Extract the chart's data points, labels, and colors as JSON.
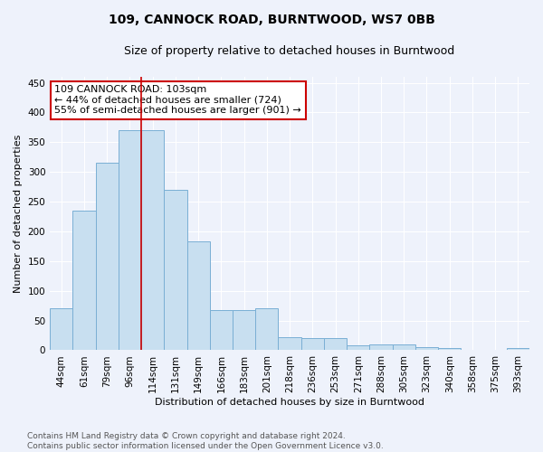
{
  "title": "109, CANNOCK ROAD, BURNTWOOD, WS7 0BB",
  "subtitle": "Size of property relative to detached houses in Burntwood",
  "xlabel": "Distribution of detached houses by size in Burntwood",
  "ylabel": "Number of detached properties",
  "categories": [
    "44sqm",
    "61sqm",
    "79sqm",
    "96sqm",
    "114sqm",
    "131sqm",
    "149sqm",
    "166sqm",
    "183sqm",
    "201sqm",
    "218sqm",
    "236sqm",
    "253sqm",
    "271sqm",
    "288sqm",
    "305sqm",
    "323sqm",
    "340sqm",
    "358sqm",
    "375sqm",
    "393sqm"
  ],
  "values": [
    70,
    235,
    315,
    370,
    370,
    270,
    183,
    68,
    68,
    70,
    22,
    20,
    20,
    8,
    10,
    10,
    5,
    4,
    0,
    0,
    4
  ],
  "bar_color": "#c8dff0",
  "bar_edge_color": "#7aafd4",
  "vline_x": 3.5,
  "annotation_text": "109 CANNOCK ROAD: 103sqm\n← 44% of detached houses are smaller (724)\n55% of semi-detached houses are larger (901) →",
  "annotation_box_color": "#ffffff",
  "annotation_box_edge_color": "#cc0000",
  "ylim": [
    0,
    460
  ],
  "yticks": [
    0,
    50,
    100,
    150,
    200,
    250,
    300,
    350,
    400,
    450
  ],
  "footer": "Contains HM Land Registry data © Crown copyright and database right 2024.\nContains public sector information licensed under the Open Government Licence v3.0.",
  "bg_color": "#eef2fb",
  "grid_color": "#ffffff",
  "title_fontsize": 10,
  "subtitle_fontsize": 9,
  "axis_label_fontsize": 8,
  "tick_fontsize": 7.5,
  "annotation_fontsize": 8,
  "footer_fontsize": 6.5
}
